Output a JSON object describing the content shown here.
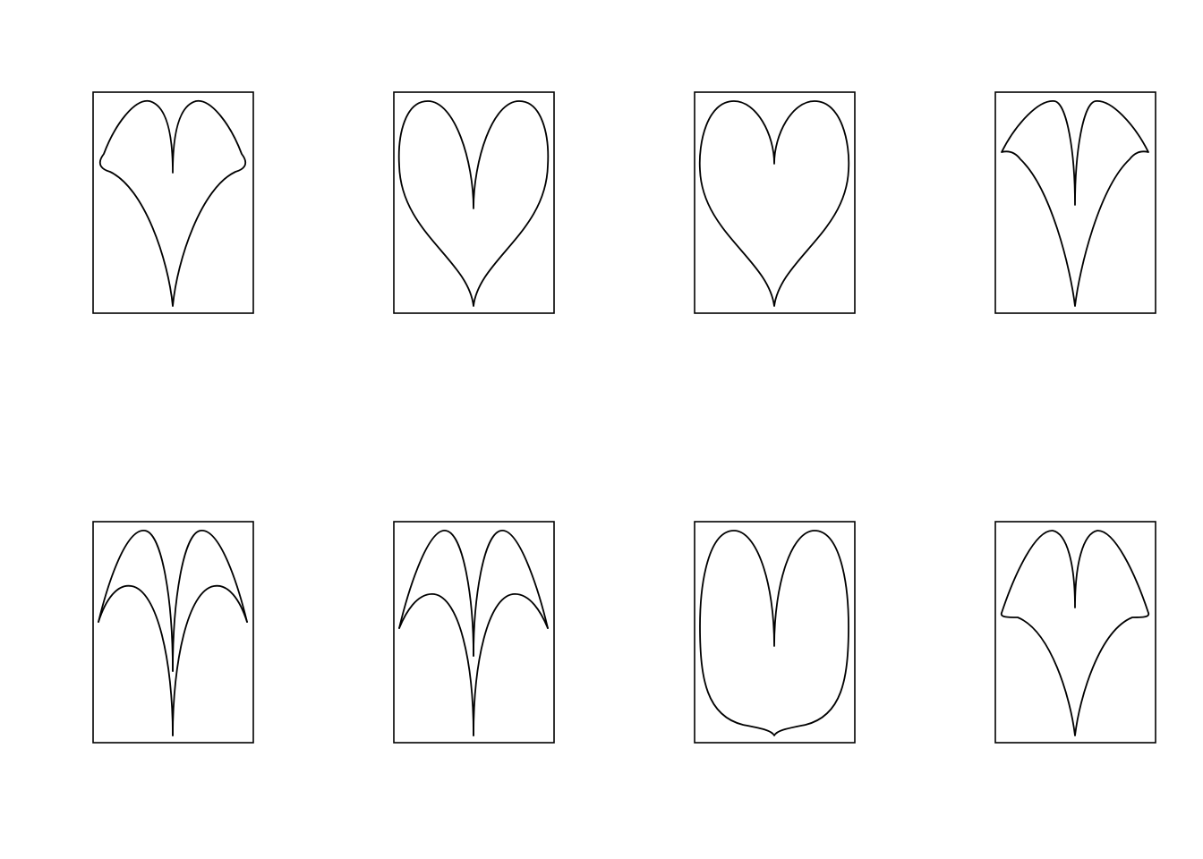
{
  "figure": {
    "rows": 2,
    "columns": 4,
    "stroke_color": "#000000",
    "background": "#ffffff",
    "panels": [
      {
        "row": 1,
        "col": 1,
        "shape": "ginkgo-leaf-sharp-shoulders"
      },
      {
        "row": 1,
        "col": 2,
        "shape": "heart-narrow-deep-notch"
      },
      {
        "row": 1,
        "col": 3,
        "shape": "heart-classic"
      },
      {
        "row": 1,
        "col": 4,
        "shape": "arrowhead-swept-shoulders"
      },
      {
        "row": 2,
        "col": 1,
        "shape": "double-arch-overlapping"
      },
      {
        "row": 2,
        "col": 2,
        "shape": "double-arch-overlapping-low"
      },
      {
        "row": 2,
        "col": 3,
        "shape": "rounded-u-heart"
      },
      {
        "row": 2,
        "col": 4,
        "shape": "ginkgo-leaf-low-shoulders"
      }
    ]
  }
}
